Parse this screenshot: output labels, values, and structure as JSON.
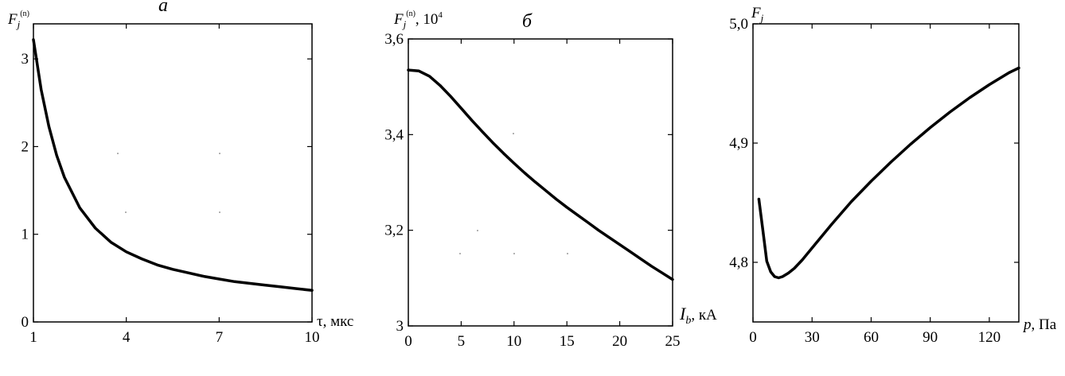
{
  "chart_data": [
    {
      "type": "line",
      "title": "а",
      "ylabel_main": "F",
      "ylabel_sub": "j",
      "ylabel_sup": "(n)",
      "ylabel_suffix": "",
      "xlabel_var": "τ",
      "xlabel_unit": ", мкс",
      "xlim": [
        1,
        10
      ],
      "ylim": [
        0,
        3.4
      ],
      "xticks": [
        1,
        4,
        7,
        10
      ],
      "xtick_labels": [
        "1",
        "4",
        "7",
        "10"
      ],
      "yticks": [
        0,
        1,
        2,
        3
      ],
      "ytick_labels": [
        "0",
        "1",
        "2",
        "3"
      ],
      "grid": false,
      "series": [
        {
          "x": [
            1.0,
            1.25,
            1.5,
            1.75,
            2.0,
            2.5,
            3.0,
            3.5,
            4.0,
            4.5,
            5.0,
            5.5,
            6.0,
            6.5,
            7.0,
            7.5,
            8.0,
            8.5,
            9.0,
            9.5,
            10.0
          ],
          "y": [
            3.22,
            2.65,
            2.23,
            1.9,
            1.65,
            1.3,
            1.07,
            0.91,
            0.8,
            0.72,
            0.65,
            0.6,
            0.56,
            0.52,
            0.49,
            0.46,
            0.44,
            0.42,
            0.4,
            0.38,
            0.36
          ]
        }
      ]
    },
    {
      "type": "line",
      "title": "б",
      "ylabel_main": "F",
      "ylabel_sub": "j",
      "ylabel_sup": "(n)",
      "ylabel_suffix": ", 10",
      "ylabel_suffix_sup": "4",
      "xlabel_var": "I",
      "xlabel_sub": "b",
      "xlabel_unit": ", кА",
      "xlim": [
        0,
        25
      ],
      "ylim": [
        3.0,
        3.6
      ],
      "xticks": [
        0,
        5,
        10,
        15,
        20,
        25
      ],
      "xtick_labels": [
        "0",
        "5",
        "10",
        "15",
        "20",
        "25"
      ],
      "yticks": [
        3.0,
        3.2,
        3.4,
        3.6
      ],
      "ytick_labels": [
        "3",
        "3,2",
        "3,4",
        "3,6"
      ],
      "grid": false,
      "series": [
        {
          "x": [
            0,
            1,
            2,
            3,
            4,
            5,
            6,
            7,
            8,
            9,
            10,
            11,
            12,
            13,
            14,
            15,
            16,
            17,
            18,
            19,
            20,
            21,
            22,
            23,
            24,
            25
          ],
          "y": [
            3.535,
            3.533,
            3.522,
            3.503,
            3.48,
            3.455,
            3.43,
            3.406,
            3.383,
            3.361,
            3.34,
            3.32,
            3.301,
            3.283,
            3.265,
            3.248,
            3.232,
            3.216,
            3.2,
            3.185,
            3.17,
            3.155,
            3.14,
            3.125,
            3.111,
            3.097
          ]
        }
      ]
    },
    {
      "type": "line",
      "title": "",
      "ylabel_main": "F",
      "ylabel_sub": "j",
      "ylabel_sup": "",
      "ylabel_suffix": "",
      "xlabel_var": "p",
      "xlabel_unit": ", Па",
      "xlim": [
        0,
        135
      ],
      "ylim": [
        4.75,
        5.0
      ],
      "xticks": [
        0,
        30,
        60,
        90,
        120
      ],
      "xtick_labels": [
        "0",
        "30",
        "60",
        "90",
        "120"
      ],
      "yticks": [
        4.8,
        4.9,
        5.0
      ],
      "ytick_labels": [
        "4,8",
        "4,9",
        "5,0"
      ],
      "grid": false,
      "series": [
        {
          "x": [
            3,
            5,
            7,
            9,
            11,
            13,
            15,
            18,
            21,
            25,
            30,
            40,
            50,
            60,
            70,
            80,
            90,
            100,
            110,
            120,
            130,
            135
          ],
          "y": [
            4.853,
            4.827,
            4.801,
            4.792,
            4.788,
            4.787,
            4.788,
            4.791,
            4.795,
            4.802,
            4.812,
            4.832,
            4.851,
            4.868,
            4.884,
            4.899,
            4.913,
            4.926,
            4.938,
            4.949,
            4.959,
            4.963
          ]
        }
      ]
    }
  ]
}
